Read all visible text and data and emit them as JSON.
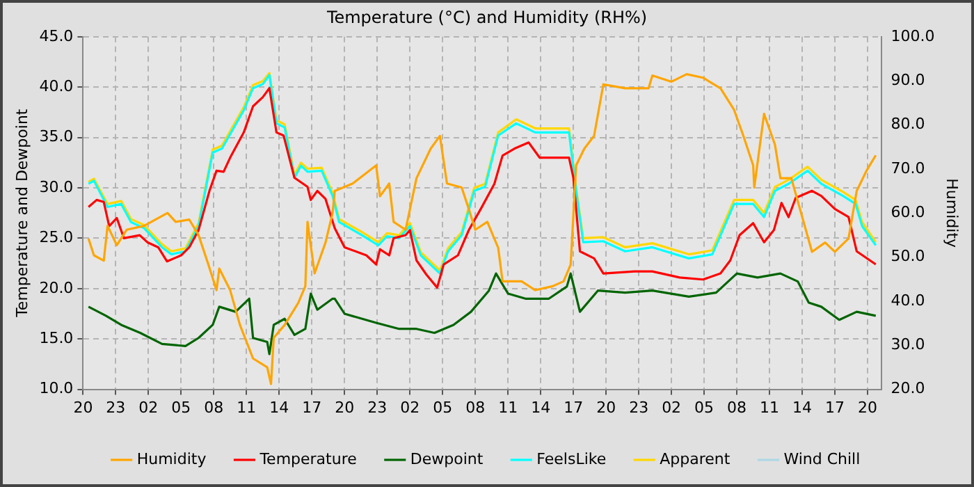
{
  "chart_data": {
    "type": "line",
    "title": "Temperature (°C) and Humidity (RH%)",
    "ylabel": "Temperature and Dewpoint",
    "y2label": "Humidity",
    "xlim": [
      "--01-01T20:00",
      "--01-04T21:15"
    ],
    "xticks": [
      {
        "value": "--01-01T20:00",
        "label": "20"
      },
      {
        "value": "--01-01T23:00",
        "label": "23"
      },
      {
        "value": "--01-02T02:00",
        "label": "02"
      },
      {
        "value": "--01-02T05:00",
        "label": "05"
      },
      {
        "value": "--01-02T08:00",
        "label": "08"
      },
      {
        "value": "--01-02T11:00",
        "label": "11"
      },
      {
        "value": "--01-02T14:00",
        "label": "14"
      },
      {
        "value": "--01-02T17:00",
        "label": "17"
      },
      {
        "value": "--01-02T20:00",
        "label": "20"
      },
      {
        "value": "--01-02T23:00",
        "label": "23"
      },
      {
        "value": "--01-03T02:00",
        "label": "02"
      },
      {
        "value": "--01-03T05:00",
        "label": "05"
      },
      {
        "value": "--01-03T08:00",
        "label": "08"
      },
      {
        "value": "--01-03T11:00",
        "label": "11"
      },
      {
        "value": "--01-03T14:00",
        "label": "14"
      },
      {
        "value": "--01-03T17:00",
        "label": "17"
      },
      {
        "value": "--01-03T20:00",
        "label": "20"
      },
      {
        "value": "--01-03T23:00",
        "label": "23"
      },
      {
        "value": "--01-04T02:00",
        "label": "02"
      },
      {
        "value": "--01-04T05:00",
        "label": "05"
      },
      {
        "value": "--01-04T08:00",
        "label": "08"
      },
      {
        "value": "--01-04T11:00",
        "label": "11"
      },
      {
        "value": "--01-04T14:00",
        "label": "14"
      },
      {
        "value": "--01-04T17:00",
        "label": "17"
      },
      {
        "value": "--01-04T20:00",
        "label": "20"
      }
    ],
    "ylim": [
      10,
      45
    ],
    "yticks": [
      {
        "value": 10,
        "label": "10.0"
      },
      {
        "value": 15,
        "label": "15.0"
      },
      {
        "value": 20,
        "label": "20.0"
      },
      {
        "value": 25,
        "label": "25.0"
      },
      {
        "value": 30,
        "label": "30.0"
      },
      {
        "value": 35,
        "label": "35.0"
      },
      {
        "value": 40,
        "label": "40.0"
      },
      {
        "value": 45,
        "label": "45.0"
      }
    ],
    "y2lim": [
      20,
      100
    ],
    "y2ticks": [
      {
        "value": 20,
        "label": "20.0"
      },
      {
        "value": 30,
        "label": "30.0"
      },
      {
        "value": 40,
        "label": "40.0"
      },
      {
        "value": 50,
        "label": "50.0"
      },
      {
        "value": 60,
        "label": "60.0"
      },
      {
        "value": 70,
        "label": "70.0"
      },
      {
        "value": 80,
        "label": "80.0"
      },
      {
        "value": 90,
        "label": "90.0"
      },
      {
        "value": 100,
        "label": "100.0"
      }
    ],
    "grid": true,
    "legend": "bottom",
    "line_style": "solid",
    "series": [
      {
        "name": "Humidity",
        "color": "#ffa500",
        "axis": "y2",
        "x": [
          "--01-01T20:30",
          "--01-01T21:00",
          "--01-01T21:54",
          "--01-01T22:15",
          "--01-01T23:06",
          "--01-02T00:00",
          "--01-02T01:36",
          "--01-02T03:45",
          "--01-02T04:30",
          "--01-02T05:45",
          "--01-02T06:36",
          "--01-02T07:30",
          "--01-02T08:15",
          "--01-02T08:30",
          "--01-02T09:30",
          "--01-02T10:24",
          "--01-02T11:36",
          "--01-02T12:54",
          "--01-02T13:15",
          "--01-02T13:30",
          "--01-02T14:30",
          "--01-02T15:45",
          "--01-02T16:24",
          "--01-02T16:36",
          "--01-02T17:15",
          "--01-02T18:15",
          "--01-02T18:54",
          "--01-02T19:06",
          "--01-02T20:45",
          "--01-02T22:54",
          "--01-02T23:15",
          "--01-03T00:06",
          "--01-03T00:30",
          "--01-03T01:36",
          "--01-03T02:36",
          "--01-03T03:54",
          "--01-03T04:45",
          "--01-03T05:24",
          "--01-03T06:45",
          "--01-03T07:24",
          "--01-03T08:00",
          "--01-03T09:06",
          "--01-03T10:06",
          "--01-03T10:30",
          "--01-03T12:15",
          "--01-03T13:30",
          "--01-03T15:06",
          "--01-03T16:06",
          "--01-03T16:45",
          "--01-03T17:15",
          "--01-03T18:00",
          "--01-03T18:54",
          "--01-03T19:45",
          "--01-03T21:45",
          "--01-03T23:54",
          "--01-04T00:15",
          "--01-04T02:00",
          "--01-04T03:24",
          "--01-04T04:54",
          "--01-04T06:30",
          "--01-04T07:45",
          "--01-04T08:36",
          "--01-04T09:30",
          "--01-04T09:36",
          "--01-04T10:30",
          "--01-04T11:30",
          "--01-04T12:00",
          "--01-04T13:00",
          "--01-04T14:00",
          "--01-04T14:54",
          "--01-04T16:06",
          "--01-04T17:00",
          "--01-04T18:15",
          "--01-04T19:00",
          "--01-04T19:54",
          "--01-04T20:45"
        ],
        "values": [
          54.2,
          50.4,
          49.2,
          57.1,
          52.7,
          56.2,
          57.1,
          60,
          58,
          58.5,
          55,
          48.3,
          42.5,
          47.4,
          42.5,
          34.6,
          27,
          25,
          21.2,
          31.7,
          34.6,
          39.6,
          43.4,
          58,
          46.3,
          53.3,
          60,
          65,
          66.7,
          70.8,
          63.8,
          66.7,
          58,
          56.2,
          67.9,
          74.6,
          77.5,
          66.7,
          65.8,
          60.9,
          56.2,
          58,
          52.1,
          44.5,
          44.5,
          42.5,
          43.4,
          44.5,
          48.3,
          70.8,
          74.6,
          77.5,
          89.2,
          88.3,
          88.3,
          91.2,
          89.8,
          91.5,
          90.7,
          88.3,
          83.4,
          77.5,
          70.8,
          65.8,
          82.5,
          75.5,
          67.9,
          67.9,
          59.1,
          51.2,
          53.3,
          51.2,
          54.2,
          65,
          69.6,
          73.1
        ]
      },
      {
        "name": "Temperature",
        "color": "#ff0000",
        "x": [
          "--01-01T20:30",
          "--01-01T21:15",
          "--01-01T21:54",
          "--01-01T22:24",
          "--01-01T23:06",
          "--01-01T23:45",
          "--01-02T01:12",
          "--01-02T01:54",
          "--01-02T02:54",
          "--01-02T03:42",
          "--01-02T05:00",
          "--01-02T05:45",
          "--01-02T06:36",
          "--01-02T07:36",
          "--01-02T08:15",
          "--01-02T08:54",
          "--01-02T09:30",
          "--01-02T10:45",
          "--01-02T11:36",
          "--01-02T12:30",
          "--01-02T13:06",
          "--01-02T13:45",
          "--01-02T14:24",
          "--01-02T15:24",
          "--01-02T16:36",
          "--01-02T16:54",
          "--01-02T17:30",
          "--01-02T18:15",
          "--01-02T19:06",
          "--01-02T20:00",
          "--01-02T22:00",
          "--01-02T22:54",
          "--01-02T23:15",
          "--01-03T00:06",
          "--01-03T00:30",
          "--01-03T01:36",
          "--01-03T02:00",
          "--01-03T02:36",
          "--01-03T03:30",
          "--01-03T04:30",
          "--01-03T05:06",
          "--01-03T06:24",
          "--01-03T07:24",
          "--01-03T08:30",
          "--01-03T09:45",
          "--01-03T10:30",
          "--01-03T11:36",
          "--01-03T12:54",
          "--01-03T13:54",
          "--01-03T15:30",
          "--01-03T16:36",
          "--01-03T17:00",
          "--01-03T17:36",
          "--01-03T18:54",
          "--01-03T19:45",
          "--01-03T22:36",
          "--01-04T00:15",
          "--01-04T02:45",
          "--01-04T04:54",
          "--01-04T06:30",
          "--01-04T07:24",
          "--01-04T08:15",
          "--01-04T09:30",
          "--01-04T10:30",
          "--01-04T11:24",
          "--01-04T12:06",
          "--01-04T12:45",
          "--01-04T13:24",
          "--01-04T14:54",
          "--01-04T15:45",
          "--01-04T17:00",
          "--01-04T18:15",
          "--01-04T19:00",
          "--01-04T20:45"
        ],
        "values": [
          28.1,
          28.8,
          28.6,
          26.2,
          27,
          25,
          25.3,
          24.6,
          24.1,
          22.7,
          23.3,
          24.1,
          25.8,
          29.7,
          31.7,
          31.6,
          33,
          35.5,
          38.1,
          39,
          39.9,
          35.5,
          35.2,
          31,
          30.1,
          28.8,
          29.7,
          28.9,
          26,
          24.1,
          23.3,
          22.4,
          23.9,
          23.3,
          25,
          25.3,
          25.8,
          22.8,
          21.4,
          20.1,
          22.4,
          23.3,
          25.8,
          27.9,
          30.4,
          33.2,
          33.9,
          34.5,
          33,
          33,
          33,
          31,
          23.7,
          23,
          21.5,
          21.7,
          21.7,
          21.1,
          20.9,
          21.5,
          22.8,
          25.3,
          26.5,
          24.6,
          25.8,
          28.5,
          27.1,
          29,
          29.7,
          29.2,
          27.9,
          27.1,
          23.7,
          22.4
        ]
      },
      {
        "name": "Dewpoint",
        "color": "#006400",
        "x": [
          "--01-01T20:30",
          "--01-01T22:06",
          "--01-01T23:30",
          "--01-02T01:15",
          "--01-02T03:15",
          "--01-02T05:24",
          "--01-02T06:36",
          "--01-02T07:54",
          "--01-02T08:30",
          "--01-02T10:00",
          "--01-02T11:15",
          "--01-02T11:36",
          "--01-02T12:54",
          "--01-02T13:06",
          "--01-02T13:30",
          "--01-02T14:30",
          "--01-02T15:24",
          "--01-02T16:24",
          "--01-02T16:54",
          "--01-02T17:30",
          "--01-02T18:54",
          "--01-02T19:06",
          "--01-02T20:00",
          "--01-02T22:54",
          "--01-03T01:00",
          "--01-03T02:36",
          "--01-03T04:15",
          "--01-03T06:00",
          "--01-03T07:36",
          "--01-03T09:15",
          "--01-03T09:54",
          "--01-03T11:00",
          "--01-03T12:36",
          "--01-03T14:45",
          "--01-03T16:24",
          "--01-03T16:45",
          "--01-03T17:36",
          "--01-03T19:15",
          "--01-03T21:45",
          "--01-04T00:15",
          "--01-04T03:36",
          "--01-04T06:06",
          "--01-04T08:00",
          "--01-04T09:54",
          "--01-04T12:00",
          "--01-04T13:36",
          "--01-04T14:36",
          "--01-04T15:45",
          "--01-04T17:24",
          "--01-04T19:00",
          "--01-04T20:45"
        ],
        "values": [
          18.2,
          17.3,
          16.4,
          15.6,
          14.5,
          14.3,
          15.1,
          16.4,
          18.2,
          17.7,
          19,
          15.1,
          14.7,
          13.5,
          16.4,
          17,
          15.4,
          16,
          19.5,
          17.9,
          19,
          19,
          17.5,
          16.6,
          16,
          16,
          15.6,
          16.4,
          17.7,
          19.8,
          21.5,
          19.5,
          19,
          19,
          20.2,
          21.5,
          17.7,
          19.8,
          19.6,
          19.8,
          19.2,
          19.6,
          21.5,
          21.1,
          21.5,
          20.7,
          18.6,
          18.2,
          16.9,
          17.7,
          17.3
        ]
      },
      {
        "name": "FeelsLike",
        "color": "#00ffff",
        "x": [
          "--01-01T20:30",
          "--01-01T21:00",
          "--01-01T22:15",
          "--01-01T23:30",
          "--01-02T00:24",
          "--01-02T01:36",
          "--01-02T03:15",
          "--01-02T04:06",
          "--01-02T05:24",
          "--01-02T06:36",
          "--01-02T07:54",
          "--01-02T08:45",
          "--01-02T10:45",
          "--01-02T11:36",
          "--01-02T12:30",
          "--01-02T13:06",
          "--01-02T13:45",
          "--01-02T14:30",
          "--01-02T15:24",
          "--01-02T16:00",
          "--01-02T16:36",
          "--01-02T17:54",
          "--01-02T18:54",
          "--01-02T19:30",
          "--01-02T21:36",
          "--01-02T23:06",
          "--01-02T23:54",
          "--01-03T01:00",
          "--01-03T02:00",
          "--01-03T03:00",
          "--01-03T04:45",
          "--01-03T05:30",
          "--01-03T06:45",
          "--01-03T07:54",
          "--01-03T08:54",
          "--01-03T10:06",
          "--01-03T11:45",
          "--01-03T13:30",
          "--01-03T15:06",
          "--01-03T16:36",
          "--01-03T17:15",
          "--01-03T17:54",
          "--01-03T19:45",
          "--01-03T21:45",
          "--01-04T00:15",
          "--01-04T03:36",
          "--01-04T05:45",
          "--01-04T07:45",
          "--01-04T09:30",
          "--01-04T10:30",
          "--01-04T11:30",
          "--01-04T12:45",
          "--01-04T14:30",
          "--01-04T15:45",
          "--01-04T17:45",
          "--01-04T18:54",
          "--01-04T19:30",
          "--01-04T20:45"
        ],
        "values": [
          30.4,
          30.7,
          28.1,
          28.4,
          26.6,
          26,
          24.1,
          23.4,
          23.7,
          26.2,
          33.5,
          33.9,
          37.7,
          39.9,
          40.3,
          41.2,
          36.4,
          36,
          31,
          32.2,
          31.6,
          31.7,
          29.2,
          26.6,
          25.3,
          24.3,
          25.2,
          25,
          26.2,
          23.3,
          21.5,
          23.7,
          25.3,
          29.7,
          30.1,
          35.2,
          36.4,
          35.5,
          35.5,
          35.5,
          29.7,
          24.6,
          24.7,
          23.7,
          24.1,
          23,
          23.4,
          28.4,
          28.4,
          27.1,
          29.7,
          30.4,
          31.7,
          30.4,
          29.2,
          28.4,
          26.2,
          24.3
        ]
      },
      {
        "name": "Apparent",
        "color": "#ffd700",
        "x": [
          "--01-01T20:30",
          "--01-01T21:00",
          "--01-01T22:15",
          "--01-01T23:30",
          "--01-02T00:24",
          "--01-02T01:36",
          "--01-02T03:15",
          "--01-02T04:06",
          "--01-02T05:24",
          "--01-02T06:36",
          "--01-02T07:54",
          "--01-02T08:45",
          "--01-02T10:45",
          "--01-02T11:36",
          "--01-02T12:30",
          "--01-02T13:06",
          "--01-02T13:45",
          "--01-02T14:30",
          "--01-02T15:24",
          "--01-02T16:00",
          "--01-02T16:36",
          "--01-02T17:54",
          "--01-02T18:54",
          "--01-02T19:30",
          "--01-02T21:36",
          "--01-02T23:06",
          "--01-02T23:54",
          "--01-03T01:00",
          "--01-03T02:00",
          "--01-03T03:00",
          "--01-03T04:45",
          "--01-03T05:30",
          "--01-03T06:45",
          "--01-03T07:54",
          "--01-03T08:54",
          "--01-03T10:06",
          "--01-03T11:45",
          "--01-03T13:30",
          "--01-03T15:06",
          "--01-03T16:36",
          "--01-03T17:15",
          "--01-03T17:54",
          "--01-03T19:45",
          "--01-03T21:45",
          "--01-04T00:15",
          "--01-04T03:36",
          "--01-04T05:45",
          "--01-04T07:45",
          "--01-04T09:30",
          "--01-04T10:30",
          "--01-04T11:30",
          "--01-04T12:45",
          "--01-04T14:30",
          "--01-04T15:45",
          "--01-04T17:45",
          "--01-04T18:54",
          "--01-04T19:30",
          "--01-04T20:45"
        ],
        "values": [
          30.6,
          30.9,
          28.4,
          28.7,
          26.9,
          26.3,
          24.4,
          23.7,
          24,
          26.5,
          33.8,
          34.2,
          38,
          40.2,
          40.6,
          41.4,
          36.7,
          36.3,
          31.3,
          32.5,
          31.9,
          32,
          29.5,
          26.9,
          25.6,
          24.6,
          25.5,
          25.3,
          26.5,
          23.6,
          21.8,
          24,
          25.6,
          30,
          30.4,
          35.5,
          36.8,
          35.9,
          35.9,
          35.9,
          30,
          25,
          25.1,
          24.1,
          24.5,
          23.4,
          23.8,
          28.8,
          28.8,
          27.5,
          30.1,
          30.8,
          32.1,
          30.8,
          29.6,
          28.8,
          26.6,
          24.6
        ]
      },
      {
        "name": "Wind Chill",
        "color": "#add8e6"
      }
    ]
  }
}
